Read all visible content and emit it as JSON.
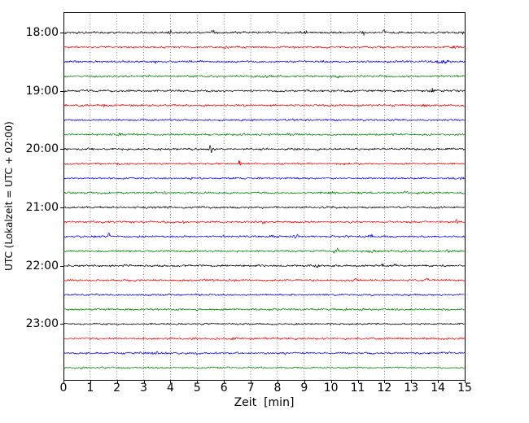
{
  "chart_data": {
    "type": "line",
    "subtype": "seismogram-dayplot",
    "title": "",
    "xlabel": "Zeit  [min]",
    "ylabel": "UTC (Lokalzeit = UTC + 02:00)",
    "x_range": [
      0,
      15
    ],
    "minutes_per_line": 15,
    "grid": {
      "vertical_dotted": true,
      "horizontal": false
    },
    "legend": "none",
    "x_tick_labels": [
      "0",
      "1",
      "2",
      "3",
      "4",
      "5",
      "6",
      "7",
      "8",
      "9",
      "10",
      "11",
      "12",
      "13",
      "14",
      "15"
    ],
    "hour_tick_labels": [
      "18:00",
      "19:00",
      "20:00",
      "21:00",
      "22:00",
      "23:00"
    ],
    "color_cycle": [
      "#000000",
      "#ff0000",
      "#0000ff",
      "#008000"
    ],
    "traces": [
      {
        "label": "18:00",
        "start": "18:00",
        "color": "#000000",
        "base": 1.1,
        "events": [
          {
            "t": 4.0,
            "a": 3.0,
            "w": 0.06
          },
          {
            "t": 5.6,
            "a": 2.0,
            "w": 0.05
          },
          {
            "t": 9.0,
            "a": 1.2,
            "w": 0.1
          },
          {
            "t": 11.2,
            "a": 3.0,
            "w": 0.07
          },
          {
            "t": 12.0,
            "a": 1.6,
            "w": 0.05
          },
          {
            "t": 14.9,
            "a": 1.2,
            "w": 0.05
          }
        ]
      },
      {
        "label": "",
        "start": "18:15",
        "color": "#ff0000",
        "base": 1.0,
        "events": [
          {
            "t": 6.0,
            "a": 1.0,
            "w": 0.1
          },
          {
            "t": 14.6,
            "a": 2.0,
            "w": 0.06
          }
        ]
      },
      {
        "label": "",
        "start": "18:30",
        "color": "#0000ff",
        "base": 1.0,
        "events": [
          {
            "t": 3.4,
            "a": 1.2,
            "w": 0.08
          },
          {
            "t": 9.8,
            "a": 1.0,
            "w": 0.1
          },
          {
            "t": 14.2,
            "a": 1.8,
            "w": 0.25
          }
        ]
      },
      {
        "label": "",
        "start": "18:45",
        "color": "#008000",
        "base": 1.0,
        "events": [
          {
            "t": 4.8,
            "a": 1.0,
            "w": 0.1
          },
          {
            "t": 7.6,
            "a": 1.8,
            "w": 0.2
          },
          {
            "t": 10.3,
            "a": 1.6,
            "w": 0.15
          }
        ]
      },
      {
        "label": "19:00",
        "start": "19:00",
        "color": "#000000",
        "base": 1.1,
        "events": [
          {
            "t": 6.7,
            "a": 1.0,
            "w": 0.08
          },
          {
            "t": 13.8,
            "a": 2.4,
            "w": 0.06
          }
        ]
      },
      {
        "label": "",
        "start": "19:15",
        "color": "#ff0000",
        "base": 1.0,
        "events": [
          {
            "t": 1.5,
            "a": 1.5,
            "w": 0.06
          },
          {
            "t": 6.8,
            "a": 1.6,
            "w": 0.07
          },
          {
            "t": 13.5,
            "a": 1.0,
            "w": 0.1
          }
        ]
      },
      {
        "label": "",
        "start": "19:30",
        "color": "#0000ff",
        "base": 1.0,
        "events": [
          {
            "t": 7.1,
            "a": 0.8,
            "w": 0.1
          }
        ]
      },
      {
        "label": "",
        "start": "19:45",
        "color": "#008000",
        "base": 1.0,
        "events": [
          {
            "t": 2.1,
            "a": 0.9,
            "w": 0.1
          },
          {
            "t": 8.5,
            "a": 1.4,
            "w": 0.12
          }
        ]
      },
      {
        "label": "20:00",
        "start": "20:00",
        "color": "#000000",
        "base": 1.1,
        "events": [
          {
            "t": 5.5,
            "a": 3.5,
            "w": 0.08
          }
        ]
      },
      {
        "label": "",
        "start": "20:15",
        "color": "#ff0000",
        "base": 0.9,
        "events": [
          {
            "t": 2.0,
            "a": 1.0,
            "w": 0.08
          },
          {
            "t": 6.6,
            "a": 3.5,
            "w": 0.05
          },
          {
            "t": 10.5,
            "a": 1.0,
            "w": 0.08
          }
        ]
      },
      {
        "label": "",
        "start": "20:30",
        "color": "#0000ff",
        "base": 0.9,
        "events": [
          {
            "t": 4.8,
            "a": 1.8,
            "w": 0.06
          },
          {
            "t": 14.9,
            "a": 2.0,
            "w": 0.08
          }
        ]
      },
      {
        "label": "",
        "start": "20:45",
        "color": "#008000",
        "base": 1.0,
        "events": [
          {
            "t": 3.8,
            "a": 2.0,
            "w": 0.06
          },
          {
            "t": 10.0,
            "a": 1.5,
            "w": 0.15
          },
          {
            "t": 12.8,
            "a": 1.1,
            "w": 0.1
          }
        ]
      },
      {
        "label": "21:00",
        "start": "21:00",
        "color": "#000000",
        "base": 1.0,
        "events": [
          {
            "t": 3.9,
            "a": 1.2,
            "w": 0.08
          },
          {
            "t": 10.1,
            "a": 1.0,
            "w": 0.1
          }
        ]
      },
      {
        "label": "",
        "start": "21:15",
        "color": "#ff0000",
        "base": 1.0,
        "events": [
          {
            "t": 4.5,
            "a": 2.8,
            "w": 0.05
          },
          {
            "t": 7.5,
            "a": 1.0,
            "w": 0.1
          },
          {
            "t": 14.7,
            "a": 2.4,
            "w": 0.06
          }
        ]
      },
      {
        "label": "",
        "start": "21:30",
        "color": "#0000ff",
        "base": 1.0,
        "events": [
          {
            "t": 1.7,
            "a": 2.8,
            "w": 0.06
          },
          {
            "t": 6.0,
            "a": 2.0,
            "w": 0.06
          },
          {
            "t": 7.8,
            "a": 1.6,
            "w": 0.08
          },
          {
            "t": 8.7,
            "a": 1.6,
            "w": 0.08
          },
          {
            "t": 11.5,
            "a": 2.0,
            "w": 0.1
          }
        ]
      },
      {
        "label": "",
        "start": "21:45",
        "color": "#008000",
        "base": 1.0,
        "events": [
          {
            "t": 10.2,
            "a": 2.0,
            "w": 0.12
          },
          {
            "t": 11.5,
            "a": 1.6,
            "w": 0.15
          },
          {
            "t": 14.4,
            "a": 1.0,
            "w": 0.1
          }
        ]
      },
      {
        "label": "22:00",
        "start": "22:00",
        "color": "#000000",
        "base": 1.1,
        "events": [
          {
            "t": 9.5,
            "a": 1.0,
            "w": 0.1
          },
          {
            "t": 11.9,
            "a": 2.4,
            "w": 0.06
          },
          {
            "t": 12.4,
            "a": 2.4,
            "w": 0.06
          }
        ]
      },
      {
        "label": "",
        "start": "22:15",
        "color": "#ff0000",
        "base": 1.0,
        "events": [
          {
            "t": 10.9,
            "a": 1.6,
            "w": 0.12
          },
          {
            "t": 13.6,
            "a": 1.4,
            "w": 0.1
          }
        ]
      },
      {
        "label": "",
        "start": "22:30",
        "color": "#0000ff",
        "base": 1.0,
        "events": []
      },
      {
        "label": "",
        "start": "22:45",
        "color": "#008000",
        "base": 1.0,
        "events": []
      },
      {
        "label": "23:00",
        "start": "23:00",
        "color": "#000000",
        "base": 0.9,
        "events": []
      },
      {
        "label": "",
        "start": "23:15",
        "color": "#ff0000",
        "base": 1.0,
        "events": [
          {
            "t": 4.8,
            "a": 1.6,
            "w": 0.07
          },
          {
            "t": 6.4,
            "a": 1.2,
            "w": 0.15
          }
        ]
      },
      {
        "label": "",
        "start": "23:30",
        "color": "#0000ff",
        "base": 1.0,
        "events": [
          {
            "t": 3.3,
            "a": 1.2,
            "w": 0.3
          },
          {
            "t": 5.0,
            "a": 1.5,
            "w": 0.08
          },
          {
            "t": 8.3,
            "a": 1.2,
            "w": 0.1
          }
        ]
      },
      {
        "label": "",
        "start": "23:45",
        "color": "#008000",
        "base": 0.8,
        "events": []
      }
    ]
  }
}
